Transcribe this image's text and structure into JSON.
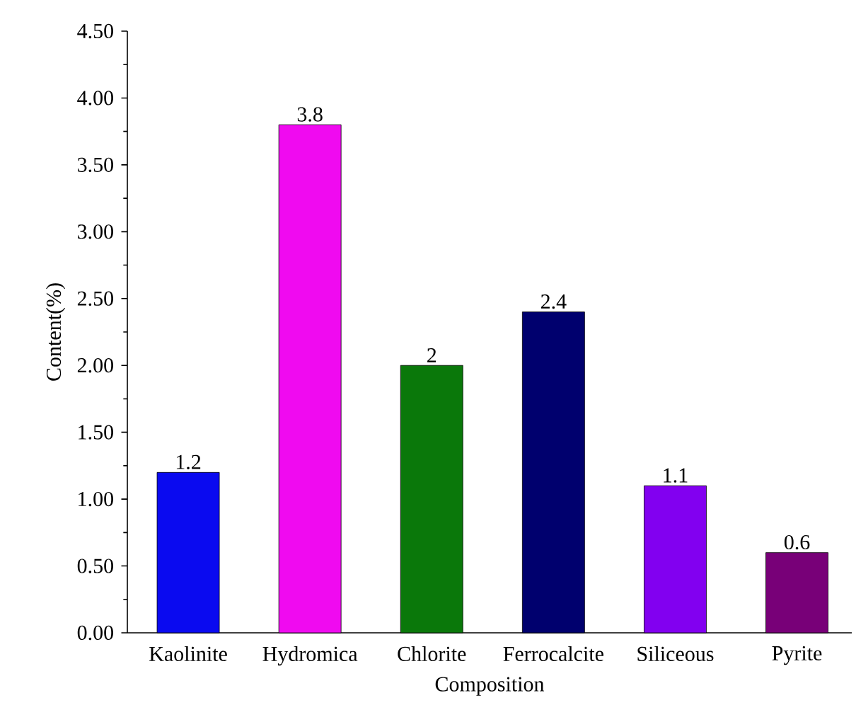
{
  "chart_data": {
    "type": "bar",
    "xlabel": "Composition",
    "ylabel": "Content(%)",
    "categories": [
      "Kaolinite",
      "Hydromica",
      "Chlorite",
      "Ferrocalcite",
      "Siliceous",
      "Pyrite"
    ],
    "values": [
      1.2,
      3.8,
      2,
      2.4,
      1.1,
      0.6
    ],
    "colors": [
      "#0a0af0",
      "#f00af0",
      "#0a780a",
      "#00006e",
      "#8200f0",
      "#780078"
    ],
    "ylim": [
      0,
      4.5
    ],
    "yticks": [
      {
        "value": 0,
        "label": "0.00"
      },
      {
        "value": 0.5,
        "label": "0.50"
      },
      {
        "value": 1,
        "label": "1.00"
      },
      {
        "value": 1.5,
        "label": "1.50"
      },
      {
        "value": 2,
        "label": "2.00"
      },
      {
        "value": 2.5,
        "label": "2.50"
      },
      {
        "value": 3,
        "label": "3.00"
      },
      {
        "value": 3.5,
        "label": "3.50"
      },
      {
        "value": 4,
        "label": "4.00"
      },
      {
        "value": 4.5,
        "label": "4.50"
      }
    ],
    "data_labels": true
  }
}
